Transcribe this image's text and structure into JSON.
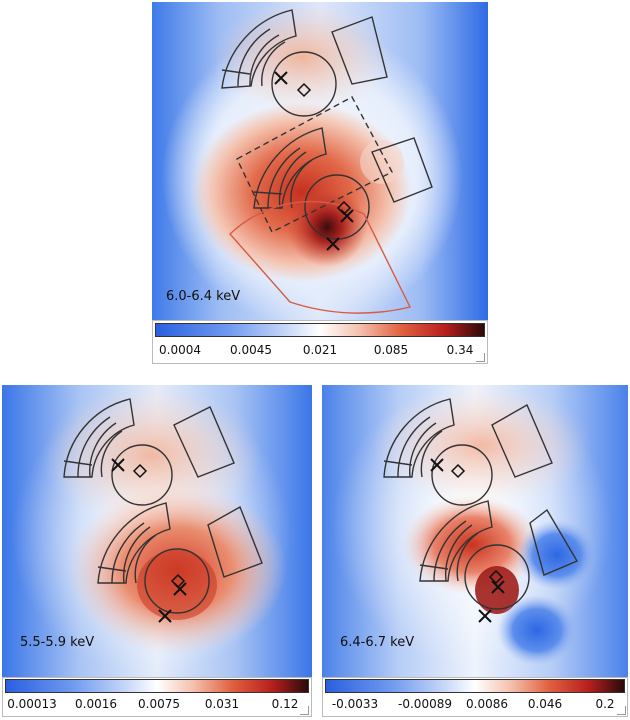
{
  "panels": [
    {
      "id": "top",
      "label": "6.0-6.4 keV",
      "ticks": [
        "0.0004",
        "0.0045",
        "0.021",
        "0.085",
        "0.34"
      ]
    },
    {
      "id": "bottom-left",
      "label": "5.5-5.9 keV",
      "ticks": [
        "0.00013",
        "0.0016",
        "0.0075",
        "0.031",
        "0.12"
      ]
    },
    {
      "id": "bottom-right",
      "label": "6.4-6.7 keV",
      "ticks": [
        "-0.0033",
        "-0.00089",
        "0.0086",
        "0.046",
        "0.2"
      ]
    }
  ],
  "colormap": [
    "#2a5fe0",
    "#6f9af0",
    "#c8d8f8",
    "#ffffff",
    "#f4c1ad",
    "#e0603f",
    "#b8201e",
    "#2a0a0a"
  ],
  "marker_color": "#111111",
  "region_color": "#333333",
  "wedge_color": "#e06040"
}
